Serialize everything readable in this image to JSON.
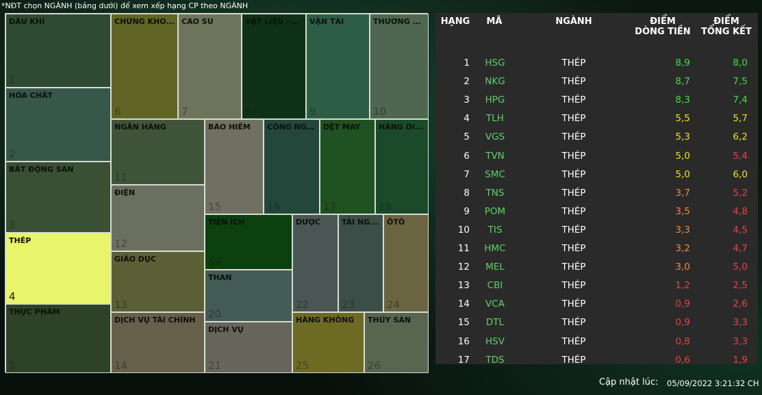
{
  "instruction": "*NĐT chọn NGÀNH (bảng dưới) để xem xếp hạng CP theo NGÀNH",
  "colors": {
    "green": "#3ee043",
    "yellow": "#f2e21b",
    "orange": "#f1893c",
    "red": "#f04040",
    "code": "#5fd06a",
    "selected_cell": "#e8f56a"
  },
  "sectors": [
    {
      "id": "1",
      "name": "DẦU KHÍ",
      "num": "1",
      "color": "#2f4a33"
    },
    {
      "id": "2",
      "name": "HÓA CHẤT",
      "num": "2",
      "color": "#37574b"
    },
    {
      "id": "3",
      "name": "BẤT ĐỘNG SẢN",
      "num": "3",
      "color": "#3a5034"
    },
    {
      "id": "4",
      "name": "THÉP",
      "num": "4",
      "color": "#e8f56a",
      "selected": true
    },
    {
      "id": "5",
      "name": "THỰC PHẨM",
      "num": "5",
      "color": "#2e4227"
    },
    {
      "id": "6",
      "name": "CHỨNG KHO...",
      "num": "6",
      "color": "#606424"
    },
    {
      "id": "7",
      "name": "CAO SU",
      "num": "7",
      "color": "#6e735c"
    },
    {
      "id": "8",
      "name": "VẬT LIỆU - X...",
      "num": "8",
      "color": "#0f3118"
    },
    {
      "id": "9",
      "name": "VẬN TẢI",
      "num": "9",
      "color": "#2d5e45"
    },
    {
      "id": "10",
      "name": "THƯƠNG ...",
      "num": "10",
      "color": "#4f6650"
    },
    {
      "id": "11",
      "name": "NGÂN HÀNG",
      "num": "11",
      "color": "#40543a"
    },
    {
      "id": "12",
      "name": "ĐIỆN",
      "num": "12",
      "color": "#6b6f60"
    },
    {
      "id": "13",
      "name": "GIÁO DỤC",
      "num": "13",
      "color": "#5a5f35"
    },
    {
      "id": "14",
      "name": "DỊCH VỤ TÀI CHÍNH",
      "num": "14",
      "color": "#665f4a"
    },
    {
      "id": "15",
      "name": "BẢO HIỂM",
      "num": "15",
      "color": "#707062"
    },
    {
      "id": "16",
      "name": "CÔNG NGHỆ",
      "num": "16",
      "color": "#23473b"
    },
    {
      "id": "17",
      "name": "DỆT MAY",
      "num": "17",
      "color": "#1f5122"
    },
    {
      "id": "18",
      "name": "HÀNG DI...",
      "num": "18",
      "color": "#1a4a2a"
    },
    {
      "id": "19",
      "name": "TIỆN ÍCH",
      "num": "19",
      "color": "#0c400f"
    },
    {
      "id": "20",
      "name": "THAN",
      "num": "20",
      "color": "#445c56"
    },
    {
      "id": "21",
      "name": "DỊCH VỤ",
      "num": "21",
      "color": "#66665c"
    },
    {
      "id": "22",
      "name": "DƯỢC",
      "num": "22",
      "color": "#4a5653"
    },
    {
      "id": "23",
      "name": "TÀI NG...",
      "num": "23",
      "color": "#3b4f48"
    },
    {
      "id": "24",
      "name": "ÔTÔ",
      "num": "24",
      "color": "#6a6440"
    },
    {
      "id": "25",
      "name": "HÀNG KHÔNG",
      "num": "25",
      "color": "#6d6a24"
    },
    {
      "id": "26",
      "name": "THỦY SẢN",
      "num": "26",
      "color": "#586650"
    }
  ],
  "table": {
    "headers": {
      "rank": "HẠNG",
      "code": "MÃ",
      "sector": "NGÀNH",
      "flow_1": "ĐIỂM",
      "flow_2": "DÒNG TIỀN",
      "total_1": "ĐIỂM",
      "total_2": "TỔNG KẾT"
    },
    "rows": [
      {
        "rank": "1",
        "code": "HSG",
        "sector": "THÉP",
        "flow": "8,9",
        "total": "8,0",
        "flow_color": "#3ee043",
        "total_color": "#3ee043"
      },
      {
        "rank": "2",
        "code": "NKG",
        "sector": "THÉP",
        "flow": "8,7",
        "total": "7,5",
        "flow_color": "#3ee043",
        "total_color": "#3ee043"
      },
      {
        "rank": "3",
        "code": "HPG",
        "sector": "THÉP",
        "flow": "8,3",
        "total": "7,4",
        "flow_color": "#3ee043",
        "total_color": "#3ee043"
      },
      {
        "rank": "4",
        "code": "TLH",
        "sector": "THÉP",
        "flow": "5,5",
        "total": "5,7",
        "flow_color": "#f2e21b",
        "total_color": "#f2e21b"
      },
      {
        "rank": "5",
        "code": "VGS",
        "sector": "THÉP",
        "flow": "5,3",
        "total": "6,2",
        "flow_color": "#f2e21b",
        "total_color": "#f2e21b"
      },
      {
        "rank": "6",
        "code": "TVN",
        "sector": "THÉP",
        "flow": "5,0",
        "total": "5,4",
        "flow_color": "#f2e21b",
        "total_color": "#f04040"
      },
      {
        "rank": "7",
        "code": "SMC",
        "sector": "THÉP",
        "flow": "5,0",
        "total": "6,0",
        "flow_color": "#f2e21b",
        "total_color": "#f2e21b"
      },
      {
        "rank": "8",
        "code": "TNS",
        "sector": "THÉP",
        "flow": "3,7",
        "total": "5,2",
        "flow_color": "#f1893c",
        "total_color": "#f04040"
      },
      {
        "rank": "9",
        "code": "POM",
        "sector": "THÉP",
        "flow": "3,5",
        "total": "4,8",
        "flow_color": "#f1893c",
        "total_color": "#f04040"
      },
      {
        "rank": "10",
        "code": "TIS",
        "sector": "THÉP",
        "flow": "3,3",
        "total": "4,5",
        "flow_color": "#f1893c",
        "total_color": "#f04040"
      },
      {
        "rank": "11",
        "code": "HMC",
        "sector": "THÉP",
        "flow": "3,2",
        "total": "4,7",
        "flow_color": "#f1893c",
        "total_color": "#f04040"
      },
      {
        "rank": "12",
        "code": "MEL",
        "sector": "THÉP",
        "flow": "3,0",
        "total": "5,0",
        "flow_color": "#f1893c",
        "total_color": "#f04040"
      },
      {
        "rank": "13",
        "code": "CBI",
        "sector": "THÉP",
        "flow": "1,2",
        "total": "2,5",
        "flow_color": "#f04040",
        "total_color": "#f04040"
      },
      {
        "rank": "14",
        "code": "VCA",
        "sector": "THÉP",
        "flow": "0,9",
        "total": "2,6",
        "flow_color": "#f04040",
        "total_color": "#f04040"
      },
      {
        "rank": "15",
        "code": "DTL",
        "sector": "THÉP",
        "flow": "0,9",
        "total": "3,3",
        "flow_color": "#f04040",
        "total_color": "#f04040"
      },
      {
        "rank": "16",
        "code": "HSV",
        "sector": "THÉP",
        "flow": "0,8",
        "total": "3,3",
        "flow_color": "#f04040",
        "total_color": "#f04040"
      },
      {
        "rank": "17",
        "code": "TDS",
        "sector": "THÉP",
        "flow": "0,6",
        "total": "1,9",
        "flow_color": "#f04040",
        "total_color": "#f04040"
      }
    ]
  },
  "footer": {
    "label": "Cập nhật lúc:",
    "time": "05/09/2022 3:21:32 CH"
  }
}
